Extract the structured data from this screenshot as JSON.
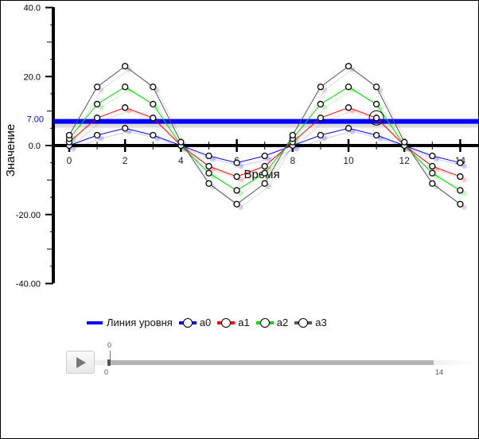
{
  "chart_data": {
    "type": "line",
    "xlabel": "Время",
    "ylabel": "Значение",
    "xlim": [
      -0.6,
      14.5
    ],
    "ylim": [
      -40,
      40
    ],
    "x": [
      0,
      1,
      2,
      3,
      4,
      5,
      6,
      7,
      8,
      9,
      10,
      11,
      12,
      13,
      14
    ],
    "x_tick_labels": [
      "0",
      "2",
      "4",
      "6",
      "8",
      "10",
      "12",
      "14"
    ],
    "y_tick_labels": [
      {
        "value": 40,
        "label": "40.0"
      },
      {
        "value": 20,
        "label": "20.0"
      },
      {
        "value": 0,
        "label": "0.0"
      },
      {
        "value": -20,
        "label": "-20.00"
      },
      {
        "value": -40,
        "label": "-40.00"
      }
    ],
    "level_line": {
      "name": "Линия уровня",
      "value": 7,
      "label": "7.00",
      "color": "#0000ff"
    },
    "series": [
      {
        "name": "a0",
        "color": "#0000ff",
        "values": [
          0,
          3,
          5,
          3,
          0,
          -3,
          -5,
          -3,
          0,
          3,
          5,
          3,
          0,
          -3,
          -5
        ]
      },
      {
        "name": "a1",
        "color": "#ff0000",
        "values": [
          1,
          8,
          11,
          8,
          0,
          -6,
          -9,
          -6,
          1,
          8,
          11,
          8,
          0,
          -6,
          -9
        ]
      },
      {
        "name": "a2",
        "color": "#00dd00",
        "values": [
          2,
          12,
          17,
          12,
          0,
          -8,
          -13,
          -8,
          2,
          12,
          17,
          12,
          0,
          -8,
          -13
        ]
      },
      {
        "name": "a3",
        "color": "#555555",
        "values": [
          3,
          17,
          23,
          17,
          1,
          -11,
          -17,
          -11,
          3,
          17,
          23,
          17,
          1,
          -11,
          -17
        ]
      }
    ],
    "highlight_point": {
      "x": 11,
      "y": 8
    },
    "grid": false,
    "legend_position": "bottom"
  },
  "slider": {
    "current_label": "0",
    "min_label": "0",
    "max_label": "14",
    "value": 0
  }
}
